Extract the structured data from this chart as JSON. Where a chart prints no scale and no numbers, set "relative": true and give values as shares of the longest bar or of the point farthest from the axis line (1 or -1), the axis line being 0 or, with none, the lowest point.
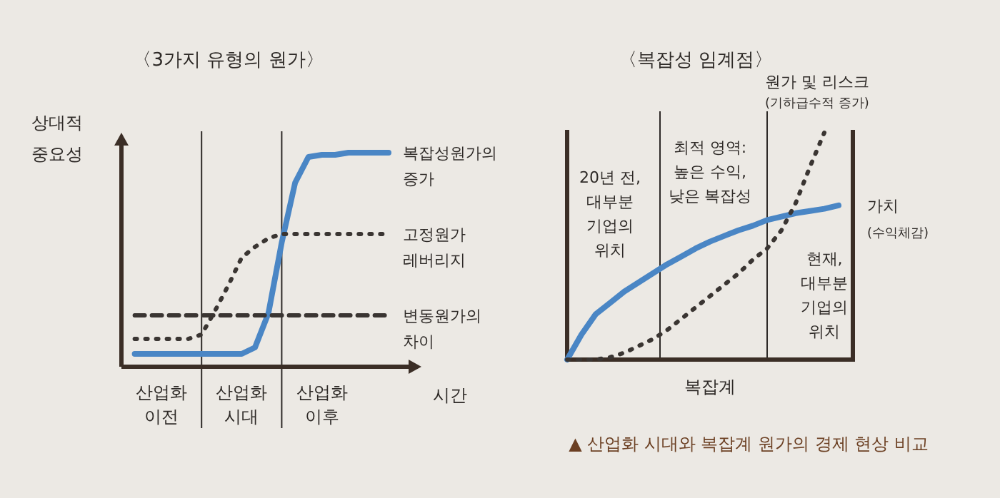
{
  "chart_data": [
    {
      "type": "line",
      "relative": true,
      "title": "〈3가지 유형의 원가〉",
      "xlabel": "시간",
      "ylabel": "상대적 중요성",
      "categories": [
        null,
        null,
        null,
        "산업화 이전",
        null,
        null,
        null,
        null,
        null,
        "산업화 시대",
        null,
        null,
        null,
        null,
        null,
        "산업화 이후",
        null,
        null,
        null,
        null,
        null
      ],
      "series": [
        {
          "name": "복잡성원가의 증가",
          "color": "#4a86c5",
          "line_style": "solid",
          "values": [
            null,
            0.06,
            0.06,
            0.06,
            0.06,
            0.06,
            0.06,
            0.06,
            0.06,
            0.06,
            0.09,
            0.25,
            0.58,
            0.86,
            0.98,
            0.99,
            0.99,
            1,
            1,
            1,
            1
          ]
        },
        {
          "name": "고정원가 레버리지",
          "color": "#3a3532",
          "line_style": "dotted",
          "values": [
            null,
            0.13,
            0.13,
            0.13,
            0.13,
            0.13,
            0.15,
            0.26,
            0.38,
            0.51,
            0.56,
            0.6,
            0.62,
            0.62,
            0.62,
            0.62,
            0.62,
            0.62,
            0.62,
            0.62,
            0.62
          ]
        },
        {
          "name": "변동원가의 차이",
          "color": "#3a3532",
          "line_style": "dashed",
          "values": [
            null,
            0.24,
            0.24,
            0.24,
            0.24,
            0.24,
            0.24,
            0.24,
            0.24,
            0.24,
            0.24,
            0.24,
            0.24,
            0.24,
            0.24,
            0.24,
            0.24,
            0.24,
            0.24,
            0.24,
            0.24
          ]
        }
      ]
    },
    {
      "type": "line",
      "relative": true,
      "title": "〈복잡성 임계점〉",
      "xlabel": "복잡계",
      "categories": [
        null,
        null,
        null,
        "20년 전, 대부분 기업의 위치",
        null,
        null,
        null,
        null,
        null,
        null,
        "최적 영역: 높은 수익, 낮은 복잡성",
        null,
        null,
        null,
        null,
        null,
        null,
        null,
        "현재, 대부분 기업의 위치",
        null,
        null
      ],
      "series": [
        {
          "name": "가치 (수익체감)",
          "color": "#4a86c5",
          "line_style": "solid",
          "values": [
            0,
            0.11,
            0.2,
            0.25,
            0.3,
            0.34,
            0.38,
            0.42,
            0.455,
            0.49,
            0.52,
            0.545,
            0.57,
            0.59,
            0.615,
            0.63,
            0.645,
            0.655,
            0.665,
            0.68,
            null
          ]
        },
        {
          "name": "원가 및 리스크 (기하급수적 증가)",
          "color": "#3a3532",
          "line_style": "dotted",
          "values": [
            0,
            0,
            0,
            0.01,
            0.03,
            0.06,
            0.09,
            0.13,
            0.18,
            0.23,
            0.28,
            0.33,
            0.38,
            0.44,
            0.49,
            0.57,
            0.69,
            0.85,
            1,
            null,
            null
          ]
        }
      ],
      "annotations": [
        "▲ 산업화 시대와 복잡계 원가의 경제 현상 비교"
      ]
    }
  ]
}
